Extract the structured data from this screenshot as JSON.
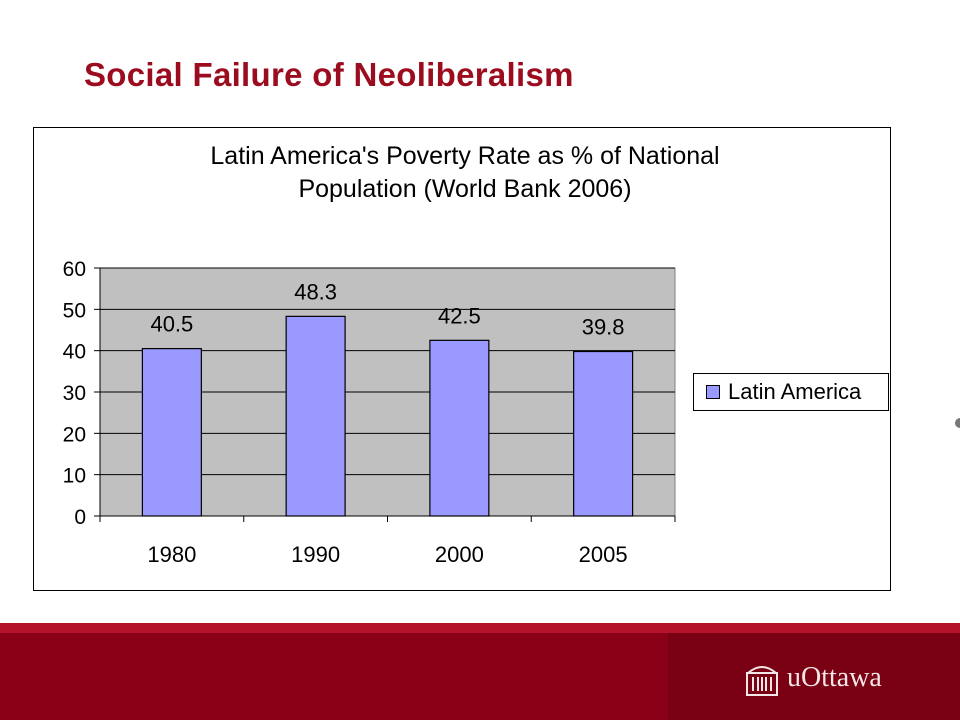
{
  "slide": {
    "title": "Social Failure of Neoliberalism"
  },
  "brand": {
    "name": "uOttawa",
    "icon": "university-building-icon",
    "colors": {
      "primary": "#8a0017",
      "accent": "#9b0c1f"
    }
  },
  "chart_data": {
    "type": "bar",
    "title_lines": [
      "Latin America's Poverty Rate as % of National",
      "Population (World Bank 2006)"
    ],
    "categories": [
      "1980",
      "1990",
      "2000",
      "2005"
    ],
    "series": [
      {
        "name": "Latin America",
        "values": [
          40.5,
          48.3,
          42.5,
          39.8
        ],
        "color": "#9999ff"
      }
    ],
    "data_labels": [
      "40.5",
      "48.3",
      "42.5",
      "39.8"
    ],
    "ylim": [
      0,
      60
    ],
    "yticks": [
      0,
      10,
      20,
      30,
      40,
      50,
      60
    ],
    "grid": true,
    "plot_background": "#c0c0c0",
    "legend_position": "right"
  }
}
